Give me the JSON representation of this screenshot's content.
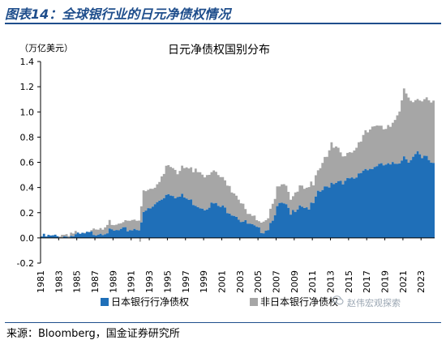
{
  "figure": {
    "label": "图表14：全球银行业的日元净债权情况",
    "source": "来源：Bloomberg，国金证券研究所",
    "watermark": "赵伟宏观探索"
  },
  "chart_data": {
    "type": "area",
    "title": "日元净债权国别分布",
    "ylabel": "（万亿美元）",
    "xlabel": "",
    "ylim": [
      -0.2,
      1.4
    ],
    "yticks": [
      -0.2,
      0.0,
      0.2,
      0.4,
      0.6,
      0.8,
      1.0,
      1.2,
      1.4
    ],
    "ytick_labels": [
      "-0.2",
      "0.0",
      "0.2",
      "0.4",
      "0.6",
      "0.8",
      "1.0",
      "1.2",
      "1.4"
    ],
    "xlim": [
      1981,
      2024.5
    ],
    "xticks": [
      1981,
      1983,
      1985,
      1987,
      1989,
      1991,
      1993,
      1995,
      1997,
      1999,
      2001,
      2003,
      2005,
      2007,
      2009,
      2011,
      2013,
      2015,
      2017,
      2019,
      2021,
      2023
    ],
    "stacked": true,
    "legend": "bottom",
    "series": [
      {
        "name": "日本银行行净债权",
        "color": "#1f6fb8",
        "points": [
          [
            1981,
            0.01
          ],
          [
            1983,
            0.01
          ],
          [
            1985,
            0.02
          ],
          [
            1987,
            0.04
          ],
          [
            1988,
            0.05
          ],
          [
            1989,
            0.05
          ],
          [
            1990,
            0.06
          ],
          [
            1991,
            0.07
          ],
          [
            1991.8,
            0.08
          ],
          [
            1992.2,
            0.18
          ],
          [
            1992.6,
            0.22
          ],
          [
            1993,
            0.23
          ],
          [
            1993.5,
            0.26
          ],
          [
            1994,
            0.3
          ],
          [
            1994.5,
            0.33
          ],
          [
            1995,
            0.36
          ],
          [
            1995.5,
            0.35
          ],
          [
            1996,
            0.32
          ],
          [
            1996.5,
            0.33
          ],
          [
            1997,
            0.31
          ],
          [
            1997.5,
            0.29
          ],
          [
            1998,
            0.27
          ],
          [
            1998.5,
            0.25
          ],
          [
            1999,
            0.24
          ],
          [
            1999.5,
            0.26
          ],
          [
            2000,
            0.27
          ],
          [
            2000.5,
            0.25
          ],
          [
            2001,
            0.24
          ],
          [
            2001.5,
            0.22
          ],
          [
            2002,
            0.2
          ],
          [
            2002.5,
            0.18
          ],
          [
            2003,
            0.14
          ],
          [
            2003.5,
            0.12
          ],
          [
            2004,
            0.1
          ],
          [
            2004.5,
            0.08
          ],
          [
            2005,
            0.06
          ],
          [
            2005.5,
            0.06
          ],
          [
            2006,
            0.08
          ],
          [
            2006.5,
            0.16
          ],
          [
            2007,
            0.24
          ],
          [
            2007.5,
            0.27
          ],
          [
            2008,
            0.25
          ],
          [
            2008.5,
            0.18
          ],
          [
            2009,
            0.23
          ],
          [
            2009.5,
            0.27
          ],
          [
            2010,
            0.25
          ],
          [
            2010.5,
            0.24
          ],
          [
            2011,
            0.27
          ],
          [
            2011.5,
            0.35
          ],
          [
            2012,
            0.38
          ],
          [
            2012.5,
            0.4
          ],
          [
            2013,
            0.44
          ],
          [
            2013.5,
            0.45
          ],
          [
            2014,
            0.46
          ],
          [
            2014.5,
            0.44
          ],
          [
            2015,
            0.47
          ],
          [
            2015.5,
            0.45
          ],
          [
            2016,
            0.5
          ],
          [
            2016.5,
            0.54
          ],
          [
            2017,
            0.56
          ],
          [
            2017.5,
            0.55
          ],
          [
            2018,
            0.58
          ],
          [
            2018.5,
            0.57
          ],
          [
            2019,
            0.58
          ],
          [
            2019.5,
            0.57
          ],
          [
            2020,
            0.59
          ],
          [
            2020.5,
            0.61
          ],
          [
            2021,
            0.65
          ],
          [
            2021.5,
            0.62
          ],
          [
            2022,
            0.64
          ],
          [
            2022.5,
            0.67
          ],
          [
            2023,
            0.62
          ],
          [
            2023.5,
            0.65
          ],
          [
            2024,
            0.6
          ]
        ]
      },
      {
        "name": "非日本银行净债权",
        "color": "#a6a6a6",
        "points": [
          [
            1981,
            0.0
          ],
          [
            1983,
            0.0
          ],
          [
            1985,
            0.01
          ],
          [
            1987,
            0.03
          ],
          [
            1988,
            0.04
          ],
          [
            1989,
            0.05
          ],
          [
            1990,
            0.06
          ],
          [
            1991,
            0.07
          ],
          [
            1991.8,
            0.07
          ],
          [
            1992.2,
            0.18
          ],
          [
            1992.6,
            0.16
          ],
          [
            1993,
            0.16
          ],
          [
            1993.5,
            0.15
          ],
          [
            1994,
            0.17
          ],
          [
            1994.5,
            0.19
          ],
          [
            1995,
            0.23
          ],
          [
            1995.5,
            0.22
          ],
          [
            1996,
            0.2
          ],
          [
            1996.5,
            0.24
          ],
          [
            1997,
            0.26
          ],
          [
            1997.5,
            0.28
          ],
          [
            1998,
            0.28
          ],
          [
            1998.5,
            0.27
          ],
          [
            1999,
            0.26
          ],
          [
            1999.5,
            0.25
          ],
          [
            2000,
            0.28
          ],
          [
            2000.5,
            0.26
          ],
          [
            2001,
            0.24
          ],
          [
            2001.5,
            0.22
          ],
          [
            2002,
            0.18
          ],
          [
            2002.5,
            0.15
          ],
          [
            2003,
            0.13
          ],
          [
            2003.5,
            0.11
          ],
          [
            2004,
            0.09
          ],
          [
            2004.5,
            0.08
          ],
          [
            2005,
            0.07
          ],
          [
            2005.5,
            0.07
          ],
          [
            2006,
            0.08
          ],
          [
            2006.5,
            0.11
          ],
          [
            2007,
            0.14
          ],
          [
            2007.5,
            0.17
          ],
          [
            2008,
            0.16
          ],
          [
            2008.5,
            0.12
          ],
          [
            2009,
            0.13
          ],
          [
            2009.5,
            0.14
          ],
          [
            2010,
            0.15
          ],
          [
            2010.5,
            0.16
          ],
          [
            2011,
            0.16
          ],
          [
            2011.5,
            0.18
          ],
          [
            2012,
            0.22
          ],
          [
            2012.5,
            0.26
          ],
          [
            2013,
            0.3
          ],
          [
            2013.5,
            0.27
          ],
          [
            2014,
            0.22
          ],
          [
            2014.5,
            0.2
          ],
          [
            2015,
            0.21
          ],
          [
            2015.5,
            0.23
          ],
          [
            2016,
            0.25
          ],
          [
            2016.5,
            0.27
          ],
          [
            2017,
            0.3
          ],
          [
            2017.5,
            0.32
          ],
          [
            2018,
            0.3
          ],
          [
            2018.5,
            0.31
          ],
          [
            2019,
            0.3
          ],
          [
            2019.5,
            0.31
          ],
          [
            2020,
            0.36
          ],
          [
            2020.5,
            0.4
          ],
          [
            2021,
            0.52
          ],
          [
            2021.5,
            0.5
          ],
          [
            2022,
            0.44
          ],
          [
            2022.5,
            0.42
          ],
          [
            2023,
            0.46
          ],
          [
            2023.5,
            0.48
          ],
          [
            2024,
            0.47
          ]
        ]
      }
    ]
  }
}
